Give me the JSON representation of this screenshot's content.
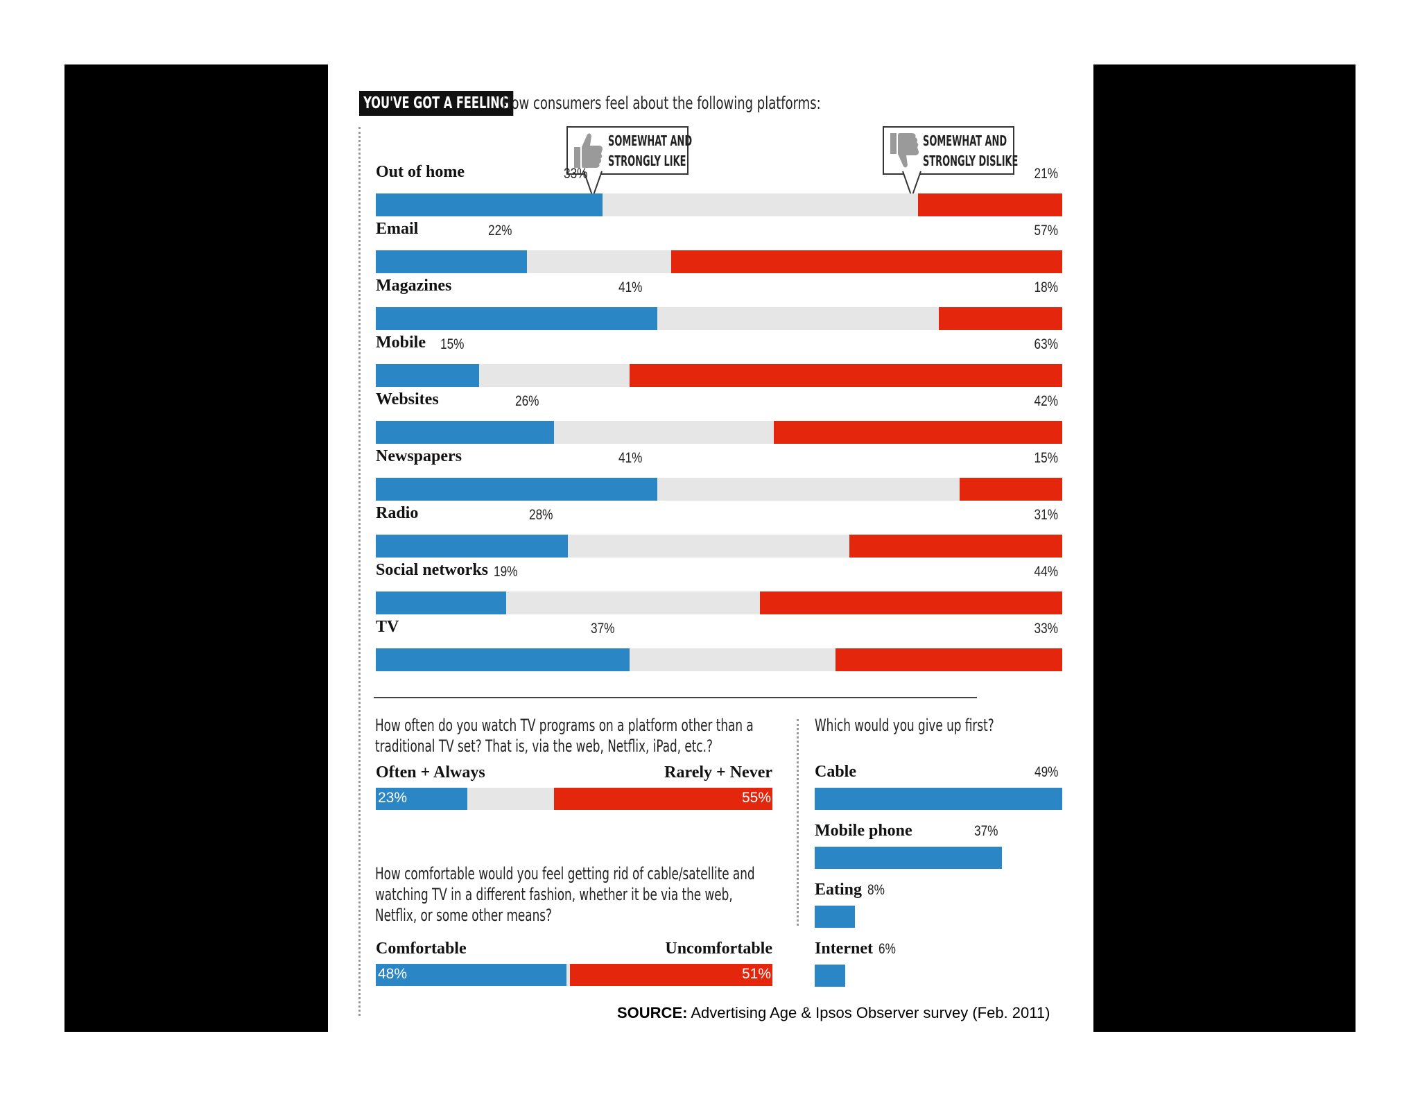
{
  "title_box": "YOU'VE GOT A FEELING",
  "subtitle": "How consumers feel about the following platforms:",
  "callout_like": [
    "SOMEWHAT AND",
    "STRONGLY LIKE"
  ],
  "callout_dislike": [
    "SOMEWHAT AND",
    "STRONGLY DISLIKE"
  ],
  "source_label": "SOURCE:",
  "source_text": "Advertising Age & Ipsos Observer survey (Feb. 2011)",
  "colors": {
    "like": "#2b86c5",
    "neutral": "#e6e6e6",
    "dislike": "#e3260c"
  },
  "chart_data": [
    {
      "type": "bar",
      "stacked": true,
      "orientation": "horizontal",
      "categories": [
        "Out of home",
        "Email",
        "Magazines",
        "Mobile",
        "Websites",
        "Newspapers",
        "Radio",
        "Social networks",
        "TV"
      ],
      "series": [
        {
          "name": "SOMEWHAT AND STRONGLY LIKE",
          "values": [
            33,
            22,
            41,
            15,
            26,
            41,
            28,
            19,
            37
          ]
        },
        {
          "name": "SOMEWHAT AND STRONGLY DISLIKE",
          "values": [
            21,
            57,
            18,
            63,
            42,
            15,
            31,
            44,
            33
          ]
        }
      ],
      "labels_like": [
        "33%",
        "22%",
        "41%",
        "15%",
        "26%",
        "41%",
        "28%",
        "19%",
        "37%"
      ],
      "labels_dislike": [
        "21%",
        "57%",
        "18%",
        "63%",
        "42%",
        "15%",
        "31%",
        "44%",
        "33%"
      ],
      "xlim": [
        0,
        100
      ]
    },
    {
      "type": "bar",
      "stacked": true,
      "orientation": "horizontal",
      "question": [
        "How often do you watch TV programs on a platform other than a",
        "traditional TV set? That is, via the web, Netflix, iPad, etc.?"
      ],
      "left_label": "Often + Always",
      "right_label": "Rarely + Never",
      "values": [
        23,
        55
      ],
      "value_labels": [
        "23%",
        "55%"
      ],
      "xlim": [
        0,
        100
      ]
    },
    {
      "type": "bar",
      "stacked": true,
      "orientation": "horizontal",
      "question": [
        "How comfortable would you feel getting rid of cable/satellite and",
        "watching TV in a different fashion, whether it be via the web,",
        "Netflix, or some other means?"
      ],
      "left_label": "Comfortable",
      "right_label": "Uncomfortable",
      "values": [
        48,
        51
      ],
      "value_labels": [
        "48%",
        "51%"
      ],
      "xlim": [
        0,
        100
      ]
    },
    {
      "type": "bar",
      "orientation": "horizontal",
      "question": [
        "Which would you give up first?"
      ],
      "categories": [
        "Cable",
        "Mobile phone",
        "Eating",
        "Internet"
      ],
      "values": [
        49,
        37,
        8,
        6
      ],
      "value_labels": [
        "49%",
        "37%",
        "8%",
        "6%"
      ],
      "xlim": [
        0,
        49
      ]
    }
  ]
}
